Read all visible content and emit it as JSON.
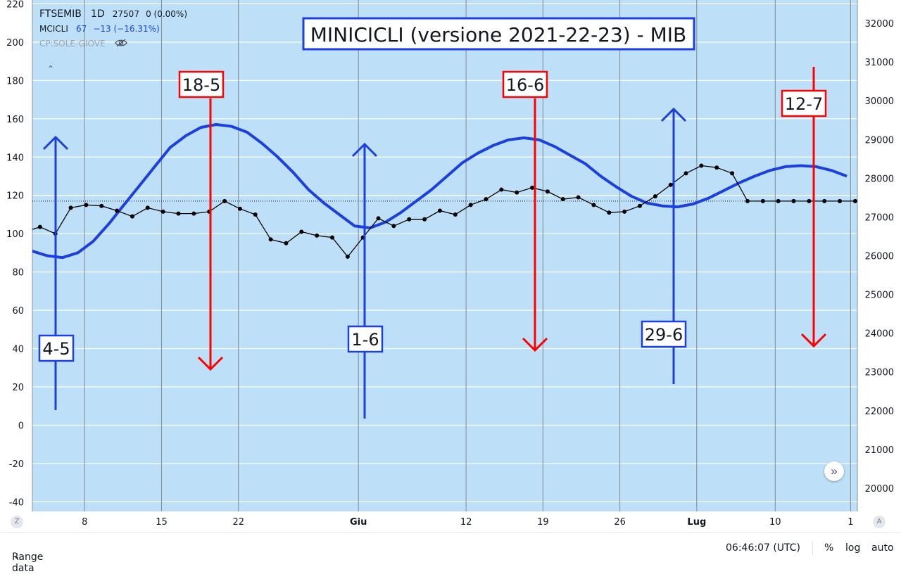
{
  "legend": {
    "symbol": "FTSEMIB",
    "interval": "1D",
    "price": "27507",
    "change": "0 (0.00%)",
    "indicator_name": "MCICLI",
    "indicator_value": "67",
    "indicator_change": "−13 (−16.31%)",
    "cp_label": "CP:SOLE-GIOVE",
    "hide_icon": "eye-off-icon",
    "collapse_icon": "chevron-up-icon"
  },
  "bottom_bar": {
    "range_label": "Range data",
    "time": "06:46:07 (UTC)",
    "percent": "%",
    "log": "log",
    "auto": "auto"
  },
  "scroll_button_icon": "double-chevron-right-icon",
  "corner_left": "Z",
  "corner_right": "A",
  "colors": {
    "background": "#bde0f8",
    "cycle_line": "#1c3fe0",
    "price_line": "#000000",
    "up_arrow": "#1c3fe0",
    "down_arrow": "#ff0000",
    "title_border": "#1c3fe0"
  },
  "chart_data": {
    "type": "line",
    "title": "MINICICLI (versione 2021-22-23) - MIB",
    "x_tick_labels": [
      "8",
      "15",
      "22",
      "Giu",
      "12",
      "19",
      "26",
      "Lug",
      "10",
      "1"
    ],
    "left_axis": {
      "ylim": [
        -45,
        222
      ],
      "ticks": [
        220,
        200,
        180,
        160,
        140,
        120,
        100,
        80,
        60,
        40,
        20,
        0,
        -20,
        -40
      ]
    },
    "right_axis": {
      "ylim": [
        19400,
        32600
      ],
      "ticks": [
        32000,
        31000,
        30000,
        29000,
        28000,
        27000,
        26000,
        25000,
        24000,
        23000,
        22000,
        21000,
        20000
      ]
    },
    "price_line_level": 117,
    "grid": true,
    "series": [
      {
        "role": "cycle",
        "values": [
          91,
          88.5,
          87.5,
          90,
          96,
          105,
          115,
          125,
          135,
          145,
          151,
          155.5,
          157,
          156,
          153,
          147,
          140,
          132,
          123,
          116,
          110,
          104,
          103,
          106,
          111,
          117,
          123,
          130,
          137,
          142,
          146,
          149,
          150,
          149,
          145.5,
          141,
          136.5,
          130,
          124.5,
          119.5,
          116,
          114.5,
          114,
          115.5,
          118.5,
          122.5,
          126.5,
          130,
          133,
          135,
          135.5,
          135,
          133,
          130
        ]
      },
      {
        "role": "price",
        "values": [
          101,
          103.5,
          100,
          113.5,
          115,
          114.5,
          112,
          109,
          113.5,
          111.5,
          110.5,
          110.5,
          111.5,
          117,
          113,
          110,
          97,
          95,
          101,
          99,
          98,
          88,
          98,
          108,
          104,
          107.5,
          107.5,
          112,
          110,
          115,
          118,
          123,
          121.5,
          124,
          122,
          118,
          119,
          115,
          111,
          111.5,
          114.5,
          119.5,
          125.5,
          131.5,
          135.5,
          134.5,
          131.5,
          117,
          117,
          117,
          117,
          117,
          117,
          117,
          117
        ]
      }
    ],
    "annotations": [
      {
        "label": "4-5",
        "direction": "up",
        "color": "blue"
      },
      {
        "label": "18-5",
        "direction": "down",
        "color": "red"
      },
      {
        "label": "1-6",
        "direction": "up",
        "color": "blue"
      },
      {
        "label": "16-6",
        "direction": "down",
        "color": "red"
      },
      {
        "label": "29-6",
        "direction": "up",
        "color": "blue"
      },
      {
        "label": "12-7",
        "direction": "down",
        "color": "red"
      }
    ]
  }
}
